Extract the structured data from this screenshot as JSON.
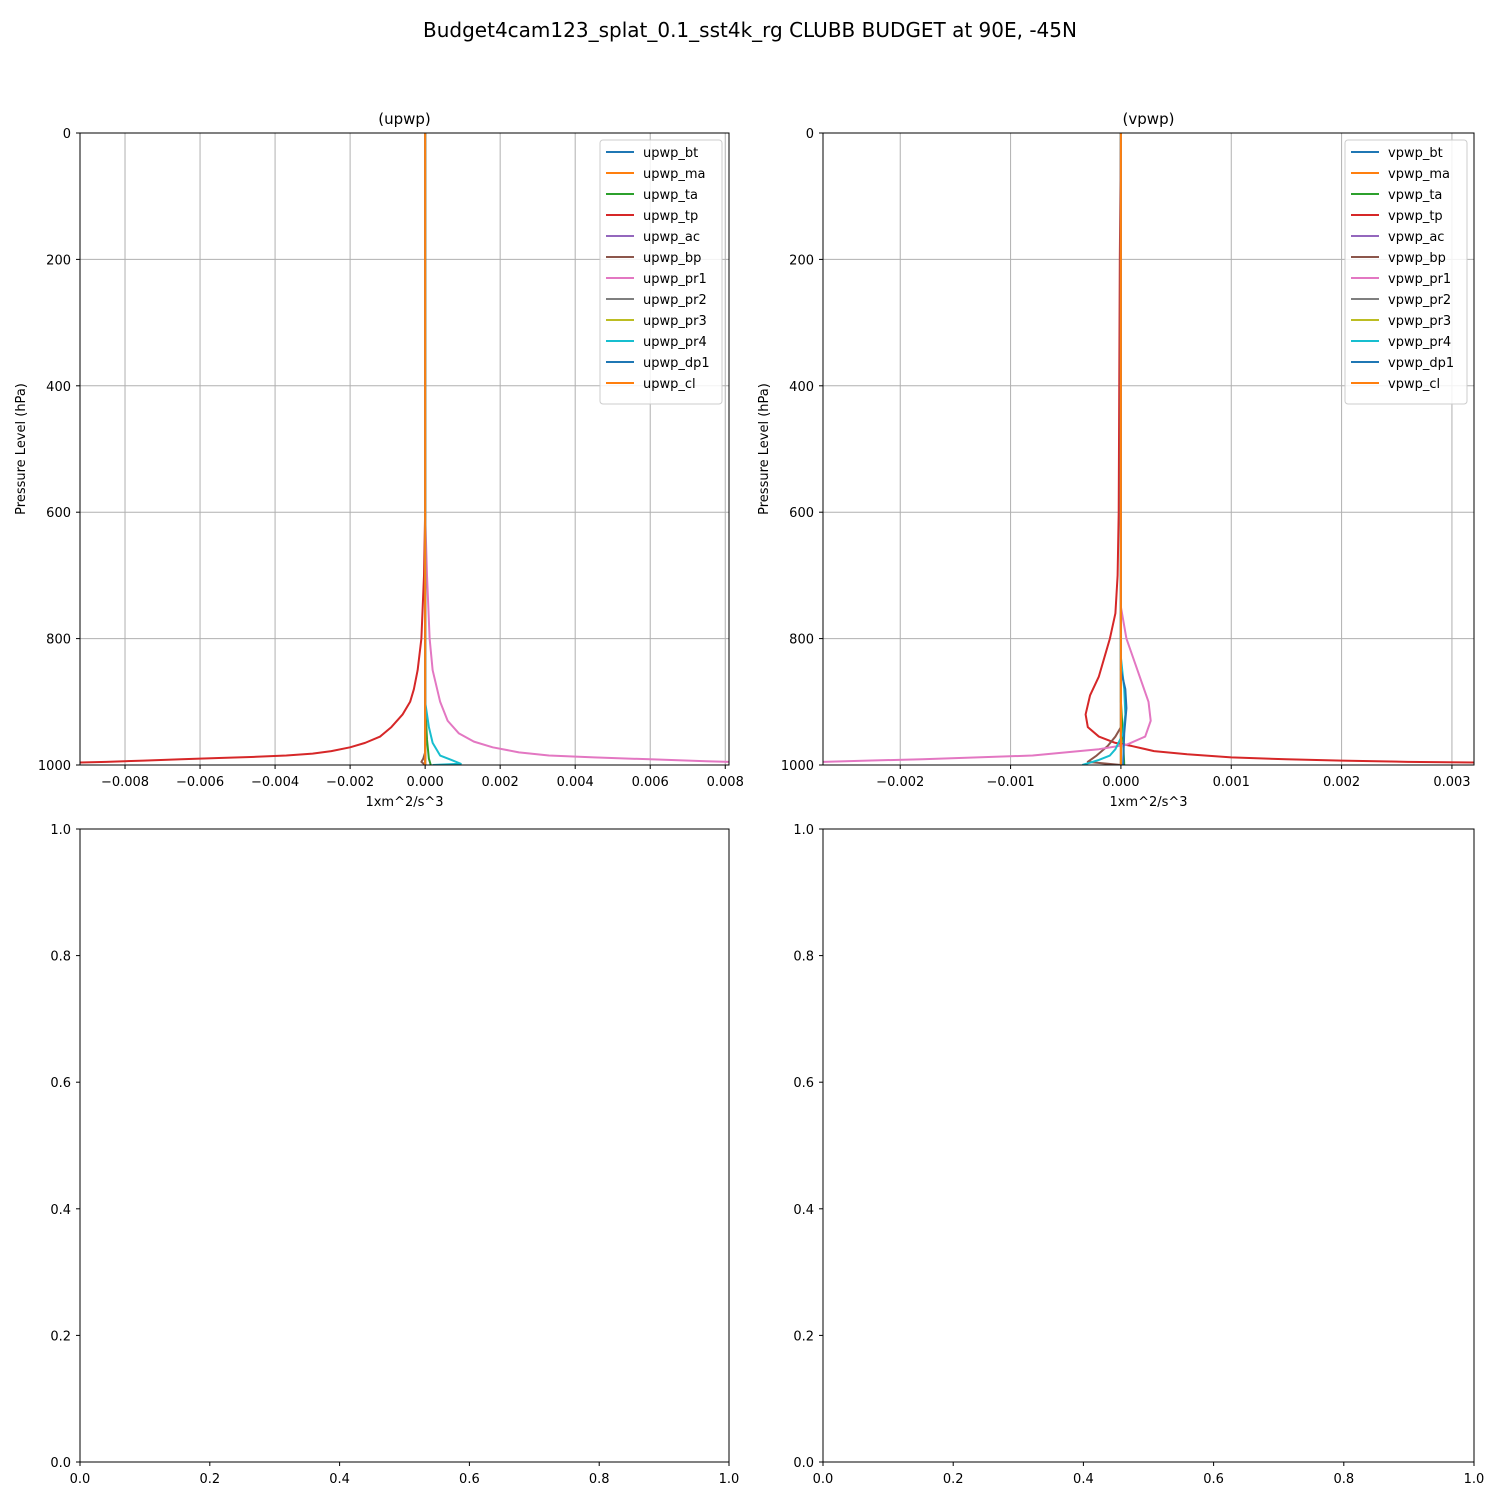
{
  "figure_title": "Budget4cam123_splat_0.1_sst4k_rg CLUBB BUDGET at 90E, -45N",
  "colors": {
    "bt": "#1f77b4",
    "ma": "#ff7f0e",
    "ta": "#2ca02c",
    "tp": "#d62728",
    "ac": "#9467bd",
    "bp": "#8c564b",
    "pr1": "#e377c2",
    "pr2": "#7f7f7f",
    "pr3": "#bcbd22",
    "pr4": "#17becf",
    "dp1": "#1f77b4",
    "cl": "#ff7f0e",
    "grid": "#b0b0b0"
  },
  "chart_data": [
    {
      "type": "line",
      "title": "(upwp)",
      "xlabel": "1xm^2/s^3",
      "ylabel": "Pressure Level (hPa)",
      "xlim": [
        -0.0092,
        0.0081
      ],
      "ylim": [
        1000,
        0
      ],
      "y_inverted": true,
      "xticks": [
        -0.008,
        -0.006,
        -0.004,
        -0.002,
        0.0,
        0.002,
        0.004,
        0.006,
        0.008
      ],
      "xtick_labels": [
        "−0.008",
        "−0.006",
        "−0.004",
        "−0.002",
        "0.000",
        "0.002",
        "0.004",
        "0.006",
        "0.008"
      ],
      "yticks": [
        0,
        200,
        400,
        600,
        800,
        1000
      ],
      "ytick_labels": [
        "0",
        "200",
        "400",
        "600",
        "800",
        "1000"
      ],
      "grid": true,
      "legend_position": "upper right",
      "series": [
        {
          "name": "upwp_bt",
          "color_key": "bt",
          "points": [
            [
              0,
              0
            ],
            [
              0,
              1000
            ]
          ]
        },
        {
          "name": "upwp_ma",
          "color_key": "ma",
          "points": [
            [
              0,
              0
            ],
            [
              0,
              1000
            ]
          ]
        },
        {
          "name": "upwp_ta",
          "color_key": "ta",
          "points": [
            [
              0,
              0
            ],
            [
              0,
              900
            ],
            [
              5e-05,
              960
            ],
            [
              0.0001,
              990
            ],
            [
              0.00015,
              1000
            ]
          ]
        },
        {
          "name": "upwp_tp",
          "color_key": "tp",
          "points": [
            [
              0,
              0
            ],
            [
              0,
              600
            ],
            [
              -3e-05,
              700
            ],
            [
              -0.0001,
              800
            ],
            [
              -0.0002,
              850
            ],
            [
              -0.0003,
              880
            ],
            [
              -0.0004,
              900
            ],
            [
              -0.0006,
              920
            ],
            [
              -0.0009,
              940
            ],
            [
              -0.0012,
              955
            ],
            [
              -0.0016,
              965
            ],
            [
              -0.002,
              972
            ],
            [
              -0.0025,
              978
            ],
            [
              -0.003,
              982
            ],
            [
              -0.0037,
              985
            ],
            [
              -0.0045,
              987
            ],
            [
              -0.0055,
              989
            ],
            [
              -0.0065,
              991
            ],
            [
              -0.0075,
              993
            ],
            [
              -0.0085,
              995
            ],
            [
              -0.0092,
              996
            ]
          ]
        },
        {
          "name": "upwp_ac",
          "color_key": "ac",
          "points": [
            [
              0,
              0
            ],
            [
              0,
              1000
            ]
          ]
        },
        {
          "name": "upwp_bp",
          "color_key": "bp",
          "points": [
            [
              0,
              0
            ],
            [
              0,
              980
            ],
            [
              -5e-05,
              990
            ],
            [
              -0.0001,
              995
            ],
            [
              0,
              1000
            ]
          ]
        },
        {
          "name": "upwp_pr1",
          "color_key": "pr1",
          "points": [
            [
              0,
              0
            ],
            [
              0,
              600
            ],
            [
              5e-05,
              700
            ],
            [
              0.00012,
              800
            ],
            [
              0.0002,
              850
            ],
            [
              0.0004,
              900
            ],
            [
              0.0006,
              930
            ],
            [
              0.0009,
              950
            ],
            [
              0.0013,
              963
            ],
            [
              0.0018,
              972
            ],
            [
              0.0025,
              980
            ],
            [
              0.0033,
              985
            ],
            [
              0.0045,
              988
            ],
            [
              0.006,
              991
            ],
            [
              0.0075,
              994
            ],
            [
              0.0081,
              995
            ]
          ]
        },
        {
          "name": "upwp_pr2",
          "color_key": "pr2",
          "points": [
            [
              0,
              0
            ],
            [
              0,
              1000
            ]
          ]
        },
        {
          "name": "upwp_pr3",
          "color_key": "pr3",
          "points": [
            [
              0,
              0
            ],
            [
              0,
              1000
            ]
          ]
        },
        {
          "name": "upwp_pr4",
          "color_key": "pr4",
          "points": [
            [
              0,
              0
            ],
            [
              0,
              900
            ],
            [
              0.0001,
              940
            ],
            [
              0.0002,
              965
            ],
            [
              0.0004,
              985
            ],
            [
              0.0007,
              992
            ],
            [
              0.00095,
              998
            ],
            [
              0.0002,
              1000
            ]
          ]
        },
        {
          "name": "upwp_dp1",
          "color_key": "dp1",
          "points": [
            [
              0,
              0
            ],
            [
              0,
              1000
            ]
          ]
        },
        {
          "name": "upwp_cl",
          "color_key": "cl",
          "points": [
            [
              0,
              0
            ],
            [
              0,
              1000
            ]
          ]
        }
      ]
    },
    {
      "type": "line",
      "title": "(vpwp)",
      "xlabel": "1xm^2/s^3",
      "ylabel": "Pressure Level (hPa)",
      "xlim": [
        -0.0027,
        0.0032
      ],
      "ylim": [
        1000,
        0
      ],
      "y_inverted": true,
      "xticks": [
        -0.002,
        -0.001,
        0.0,
        0.001,
        0.002,
        0.003
      ],
      "xtick_labels": [
        "−0.002",
        "−0.001",
        "0.000",
        "0.001",
        "0.002",
        "0.003"
      ],
      "yticks": [
        0,
        200,
        400,
        600,
        800,
        1000
      ],
      "ytick_labels": [
        "0",
        "200",
        "400",
        "600",
        "800",
        "1000"
      ],
      "grid": true,
      "legend_position": "upper right",
      "series": [
        {
          "name": "vpwp_bt",
          "color_key": "bt",
          "points": [
            [
              0,
              0
            ],
            [
              0,
              1000
            ]
          ]
        },
        {
          "name": "vpwp_ma",
          "color_key": "ma",
          "points": [
            [
              0,
              0
            ],
            [
              0,
              1000
            ]
          ]
        },
        {
          "name": "vpwp_ta",
          "color_key": "ta",
          "points": [
            [
              0,
              0
            ],
            [
              0,
              900
            ],
            [
              2e-05,
              960
            ],
            [
              3e-05,
              1000
            ]
          ]
        },
        {
          "name": "vpwp_tp",
          "color_key": "tp",
          "points": [
            [
              0,
              0
            ],
            [
              -1e-05,
              200
            ],
            [
              -2e-05,
              600
            ],
            [
              -3e-05,
              700
            ],
            [
              -5e-05,
              760
            ],
            [
              -0.0001,
              800
            ],
            [
              -0.00015,
              830
            ],
            [
              -0.0002,
              860
            ],
            [
              -0.00028,
              890
            ],
            [
              -0.00032,
              920
            ],
            [
              -0.0003,
              940
            ],
            [
              -0.0002,
              955
            ],
            [
              -5e-05,
              965
            ],
            [
              0.0001,
              970
            ],
            [
              0.0003,
              978
            ],
            [
              0.0006,
              983
            ],
            [
              0.001,
              988
            ],
            [
              0.0015,
              991
            ],
            [
              0.002,
              993
            ],
            [
              0.0026,
              995
            ],
            [
              0.0032,
              996
            ]
          ]
        },
        {
          "name": "vpwp_ac",
          "color_key": "ac",
          "points": [
            [
              0,
              0
            ],
            [
              0,
              1000
            ]
          ]
        },
        {
          "name": "vpwp_bp",
          "color_key": "bp",
          "points": [
            [
              0,
              0
            ],
            [
              0,
              940
            ],
            [
              -5e-05,
              955
            ],
            [
              -0.00012,
              970
            ],
            [
              -0.00022,
              985
            ],
            [
              -0.0003,
              995
            ],
            [
              0,
              1000
            ]
          ]
        },
        {
          "name": "vpwp_pr1",
          "color_key": "pr1",
          "points": [
            [
              0,
              0
            ],
            [
              0,
              750
            ],
            [
              5e-05,
              800
            ],
            [
              0.00015,
              850
            ],
            [
              0.00025,
              900
            ],
            [
              0.00027,
              930
            ],
            [
              0.00022,
              955
            ],
            [
              5e-05,
              968
            ],
            [
              -0.0002,
              975
            ],
            [
              -0.0005,
              980
            ],
            [
              -0.0008,
              985
            ],
            [
              -0.0013,
              988
            ],
            [
              -0.0018,
              991
            ],
            [
              -0.0023,
              993
            ],
            [
              -0.0027,
              995
            ]
          ]
        },
        {
          "name": "vpwp_pr2",
          "color_key": "pr2",
          "points": [
            [
              0,
              0
            ],
            [
              0,
              1000
            ]
          ]
        },
        {
          "name": "vpwp_pr3",
          "color_key": "pr3",
          "points": [
            [
              0,
              0
            ],
            [
              0,
              1000
            ]
          ]
        },
        {
          "name": "vpwp_pr4",
          "color_key": "pr4",
          "points": [
            [
              0,
              0
            ],
            [
              0,
              830
            ],
            [
              3e-05,
              880
            ],
            [
              4e-05,
              920
            ],
            [
              2e-05,
              950
            ],
            [
              -5e-05,
              975
            ],
            [
              -0.0001,
              985
            ],
            [
              -0.0002,
              992
            ],
            [
              -0.00035,
              1000
            ]
          ]
        },
        {
          "name": "vpwp_dp1",
          "color_key": "dp1",
          "points": [
            [
              0,
              0
            ],
            [
              0,
              850
            ],
            [
              4e-05,
              880
            ],
            [
              5e-05,
              910
            ],
            [
              3e-05,
              950
            ],
            [
              2e-05,
              1000
            ]
          ]
        },
        {
          "name": "vpwp_cl",
          "color_key": "cl",
          "points": [
            [
              0,
              0
            ],
            [
              0,
              1000
            ]
          ]
        }
      ]
    },
    {
      "type": "line",
      "title": "",
      "xlim": [
        0.0,
        1.0
      ],
      "ylim": [
        0.0,
        1.0
      ],
      "xticks": [
        0.0,
        0.2,
        0.4,
        0.6,
        0.8,
        1.0
      ],
      "xtick_labels": [
        "0.0",
        "0.2",
        "0.4",
        "0.6",
        "0.8",
        "1.0"
      ],
      "yticks": [
        0.0,
        0.2,
        0.4,
        0.6,
        0.8,
        1.0
      ],
      "ytick_labels": [
        "0.0",
        "0.2",
        "0.4",
        "0.6",
        "0.8",
        "1.0"
      ],
      "grid": false,
      "series": []
    },
    {
      "type": "line",
      "title": "",
      "xlim": [
        0.0,
        1.0
      ],
      "ylim": [
        0.0,
        1.0
      ],
      "xticks": [
        0.0,
        0.2,
        0.4,
        0.6,
        0.8,
        1.0
      ],
      "xtick_labels": [
        "0.0",
        "0.2",
        "0.4",
        "0.6",
        "0.8",
        "1.0"
      ],
      "yticks": [
        0.0,
        0.2,
        0.4,
        0.6,
        0.8,
        1.0
      ],
      "ytick_labels": [
        "0.0",
        "0.2",
        "0.4",
        "0.6",
        "0.8",
        "1.0"
      ],
      "grid": false,
      "series": []
    }
  ]
}
